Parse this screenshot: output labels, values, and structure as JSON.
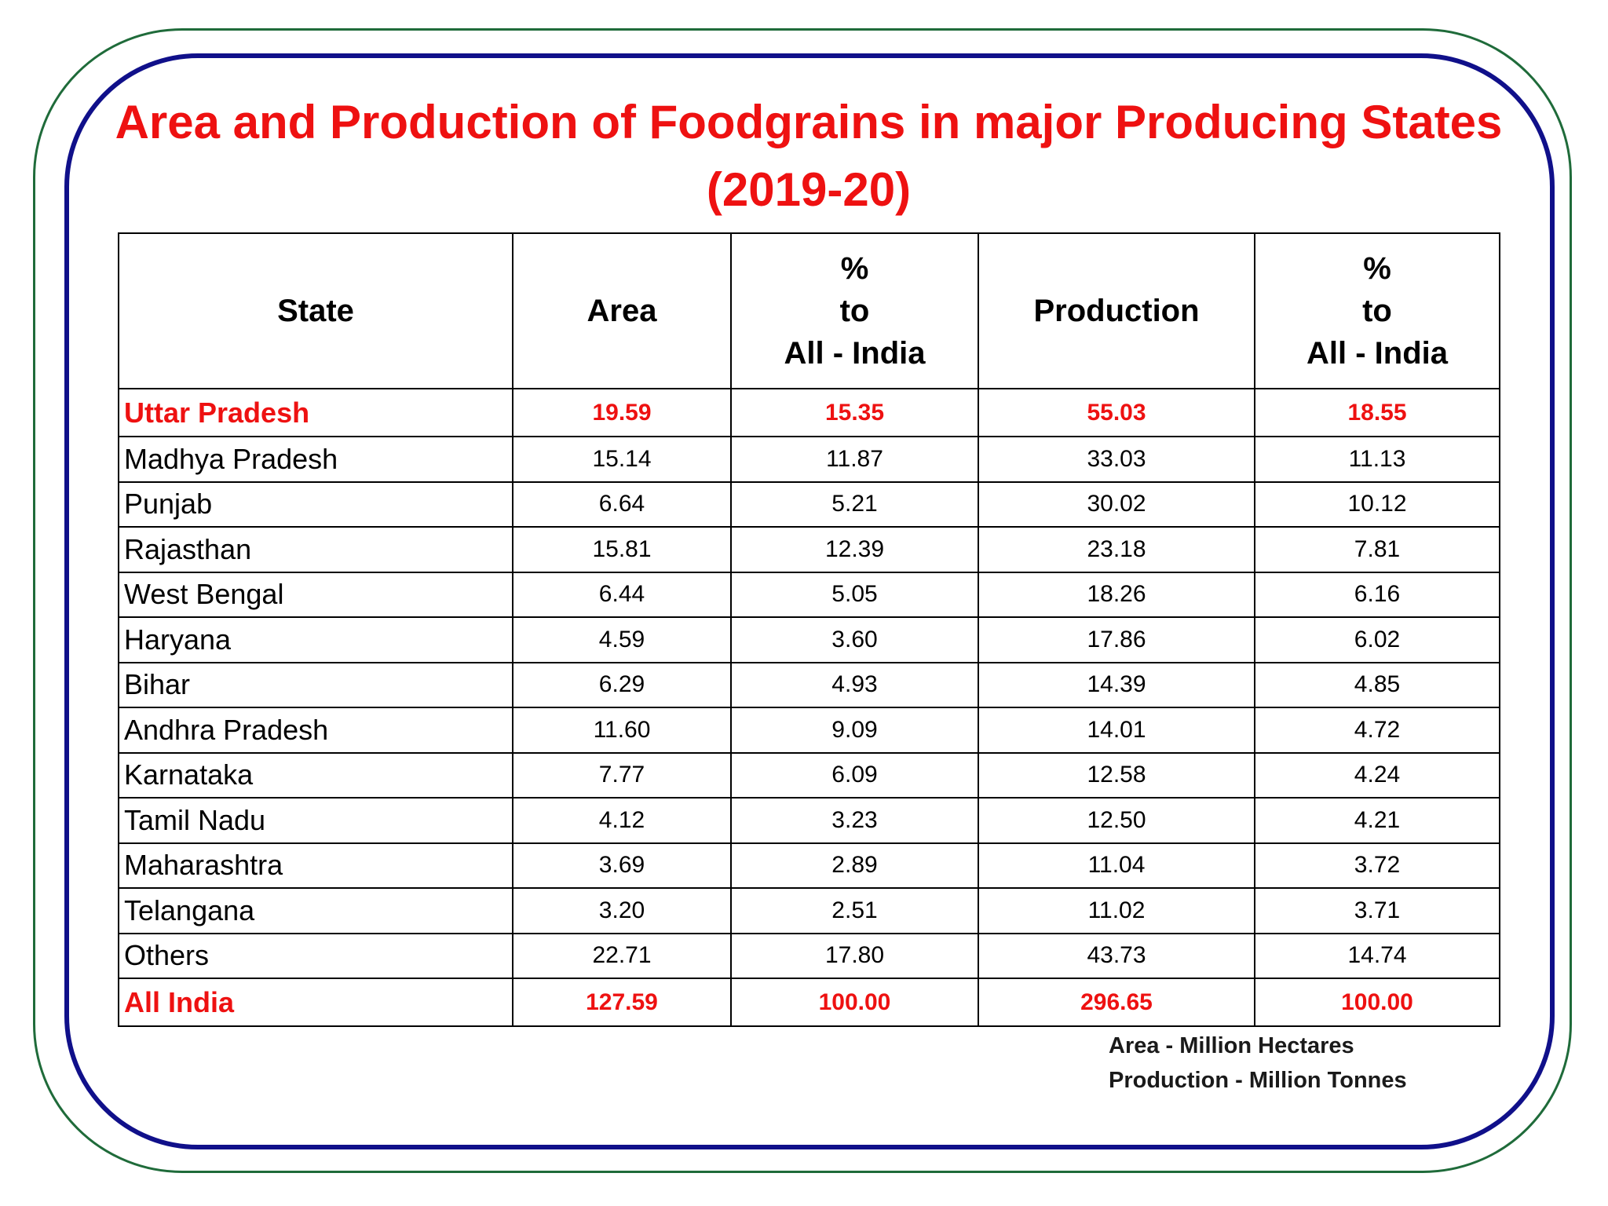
{
  "title_line1": "Area and Production of Foodgrains in major Producing States",
  "title_line2": "(2019-20)",
  "columns": {
    "state": "State",
    "area": "Area",
    "pct_area": [
      "%",
      "to",
      "All - India"
    ],
    "production": "Production",
    "pct_production": [
      "%",
      "to",
      "All - India"
    ]
  },
  "rows": [
    {
      "state": "Uttar Pradesh",
      "area": "19.59",
      "pct_area": "15.35",
      "production": "55.03",
      "pct_production": "18.55"
    },
    {
      "state": "Madhya Pradesh",
      "area": "15.14",
      "pct_area": "11.87",
      "production": "33.03",
      "pct_production": "11.13"
    },
    {
      "state": "Punjab",
      "area": "6.64",
      "pct_area": "5.21",
      "production": "30.02",
      "pct_production": "10.12"
    },
    {
      "state": "Rajasthan",
      "area": "15.81",
      "pct_area": "12.39",
      "production": "23.18",
      "pct_production": "7.81"
    },
    {
      "state": "West Bengal",
      "area": "6.44",
      "pct_area": "5.05",
      "production": "18.26",
      "pct_production": "6.16"
    },
    {
      "state": "Haryana",
      "area": "4.59",
      "pct_area": "3.60",
      "production": "17.86",
      "pct_production": "6.02"
    },
    {
      "state": "Bihar",
      "area": "6.29",
      "pct_area": "4.93",
      "production": "14.39",
      "pct_production": "4.85"
    },
    {
      "state": "Andhra Pradesh",
      "area": "11.60",
      "pct_area": "9.09",
      "production": "14.01",
      "pct_production": "4.72"
    },
    {
      "state": "Karnataka",
      "area": "7.77",
      "pct_area": "6.09",
      "production": "12.58",
      "pct_production": "4.24"
    },
    {
      "state": "Tamil Nadu",
      "area": "4.12",
      "pct_area": "3.23",
      "production": "12.50",
      "pct_production": "4.21"
    },
    {
      "state": "Maharashtra",
      "area": "3.69",
      "pct_area": "2.89",
      "production": "11.04",
      "pct_production": "3.72"
    },
    {
      "state": "Telangana",
      "area": "3.20",
      "pct_area": "2.51",
      "production": "11.02",
      "pct_production": "3.71"
    },
    {
      "state": "Others",
      "area": "22.71",
      "pct_area": "17.80",
      "production": "43.73",
      "pct_production": "14.74"
    },
    {
      "state": "All India",
      "area": "127.59",
      "pct_area": "100.00",
      "production": "296.65",
      "pct_production": "100.00"
    }
  ],
  "notes": {
    "area_unit": "Area - Million Hectares",
    "production_unit": "Production - Million Tonnes"
  },
  "colors": {
    "title": "#ee1111",
    "highlight": "#ee1111",
    "outer_border": "#1f6b3a",
    "inner_border": "#10108a"
  }
}
